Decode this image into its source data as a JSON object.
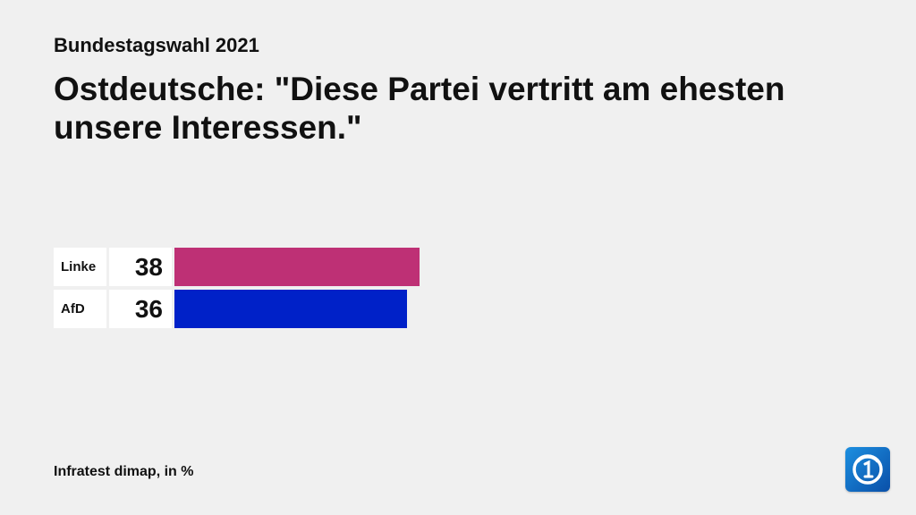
{
  "header": {
    "subtitle": "Bundestagswahl 2021",
    "title": "Ostdeutsche: \"Diese Partei vertritt am ehesten unsere Interessen.\""
  },
  "chart_data": {
    "type": "bar",
    "orientation": "horizontal",
    "title": "Ostdeutsche: \"Diese Partei vertritt am ehesten unsere Interessen.\"",
    "subtitle": "Bundestagswahl 2021",
    "categories": [
      "Linke",
      "AfD"
    ],
    "values": [
      38,
      36
    ],
    "colors": [
      "#be3075",
      "#0021c8"
    ],
    "unit": "%",
    "xlim": [
      0,
      100
    ],
    "grid": false,
    "legend": "none"
  },
  "footer": {
    "source": "Infratest dimap, in %"
  },
  "logo": {
    "icon": "tagesschau-logo-icon",
    "color": "#1c8fe0"
  }
}
